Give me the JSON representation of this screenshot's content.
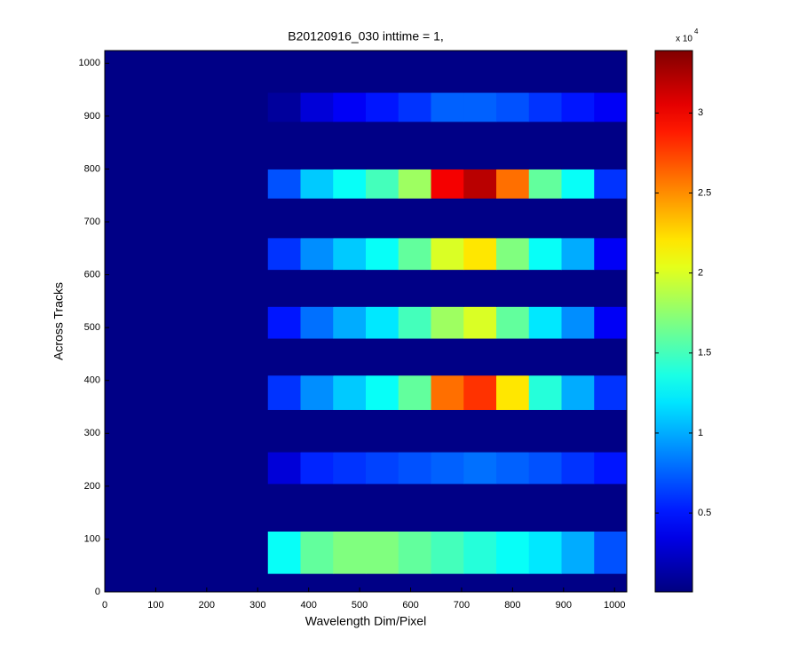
{
  "chart_data": {
    "type": "heatmap",
    "title": "B20120916_030 inttime = 1,",
    "x_label": "Wavelength Dim/Pixel",
    "y_label": "Across Tracks",
    "colormap": "jet",
    "xlim": [
      0,
      1024
    ],
    "ylim": [
      0,
      1024
    ],
    "xticks": [
      0,
      100,
      200,
      300,
      400,
      500,
      600,
      700,
      800,
      900,
      1000
    ],
    "yticks": [
      0,
      100,
      200,
      300,
      400,
      500,
      600,
      700,
      800,
      900,
      1000
    ],
    "x_bins": [
      0,
      320,
      384,
      448,
      512,
      576,
      640,
      704,
      768,
      832,
      896,
      960,
      1024
    ],
    "y_bins": [
      0,
      35,
      115,
      205,
      265,
      345,
      410,
      480,
      540,
      610,
      670,
      745,
      800,
      890,
      945,
      1024
    ],
    "z": [
      [
        300,
        300,
        300,
        300,
        300,
        300,
        300,
        300,
        300,
        300,
        300,
        300
      ],
      [
        300,
        13000,
        16000,
        17000,
        17000,
        16000,
        15000,
        14000,
        13000,
        12000,
        10000,
        7000
      ],
      [
        300,
        300,
        300,
        300,
        300,
        300,
        300,
        300,
        300,
        300,
        300,
        300
      ],
      [
        300,
        3000,
        5500,
        6000,
        6500,
        7000,
        7500,
        8000,
        7500,
        7000,
        6000,
        5000
      ],
      [
        300,
        300,
        300,
        300,
        300,
        300,
        300,
        300,
        300,
        300,
        300,
        300
      ],
      [
        300,
        6000,
        9000,
        11000,
        13000,
        16000,
        26000,
        28000,
        22000,
        14000,
        10000,
        6000
      ],
      [
        300,
        300,
        300,
        300,
        300,
        300,
        300,
        300,
        300,
        300,
        300,
        300
      ],
      [
        300,
        5000,
        8000,
        10000,
        12000,
        15000,
        18000,
        20000,
        16000,
        12000,
        9000,
        4000
      ],
      [
        300,
        300,
        300,
        300,
        300,
        300,
        300,
        300,
        300,
        300,
        300,
        300
      ],
      [
        300,
        6000,
        9000,
        11000,
        13000,
        16000,
        20000,
        22000,
        17000,
        13000,
        10000,
        4000
      ],
      [
        300,
        300,
        300,
        300,
        300,
        300,
        300,
        300,
        300,
        300,
        300,
        300
      ],
      [
        300,
        7000,
        11000,
        13000,
        15000,
        18000,
        30000,
        32000,
        26000,
        16000,
        13000,
        6000
      ],
      [
        300,
        300,
        300,
        300,
        300,
        300,
        300,
        300,
        300,
        300,
        300,
        300
      ],
      [
        300,
        1000,
        3000,
        4000,
        5000,
        6000,
        7500,
        7500,
        7000,
        6000,
        5000,
        4000
      ],
      [
        300,
        300,
        300,
        300,
        300,
        300,
        300,
        300,
        300,
        300,
        300,
        300
      ]
    ],
    "clim": [
      70,
      33900
    ],
    "colorbar_ticks": [
      {
        "value": 5000,
        "label": "0.5"
      },
      {
        "value": 10000,
        "label": "1"
      },
      {
        "value": 15000,
        "label": "1.5"
      },
      {
        "value": 20000,
        "label": "2"
      },
      {
        "value": 25000,
        "label": "2.5"
      },
      {
        "value": 30000,
        "label": "3"
      }
    ],
    "colorbar_multiplier": {
      "base": "x 10",
      "exponent": "4"
    }
  }
}
